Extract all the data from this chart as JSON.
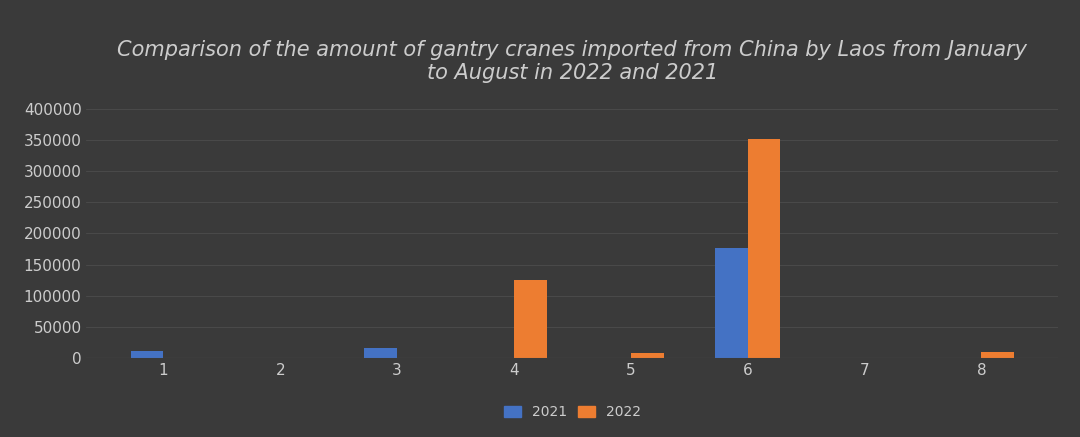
{
  "title": "Comparison of the amount of gantry cranes imported from China by Laos from January\nto August in 2022 and 2021",
  "months": [
    1,
    2,
    3,
    4,
    5,
    6,
    7,
    8
  ],
  "values_2021": [
    12000,
    0,
    17000,
    0,
    0,
    177000,
    0,
    0
  ],
  "values_2022": [
    0,
    0,
    0,
    126000,
    8000,
    352000,
    0,
    10000
  ],
  "color_2021": "#4472C4",
  "color_2022": "#ED7D31",
  "background_color": "#3A3A3A",
  "text_color": "#CCCCCC",
  "grid_color": "#666666",
  "ylim": [
    0,
    420000
  ],
  "yticks": [
    0,
    50000,
    100000,
    150000,
    200000,
    250000,
    300000,
    350000,
    400000
  ],
  "legend_labels": [
    "2021",
    "2022"
  ],
  "title_fontsize": 15,
  "tick_fontsize": 11,
  "legend_fontsize": 10,
  "bar_width": 0.28
}
